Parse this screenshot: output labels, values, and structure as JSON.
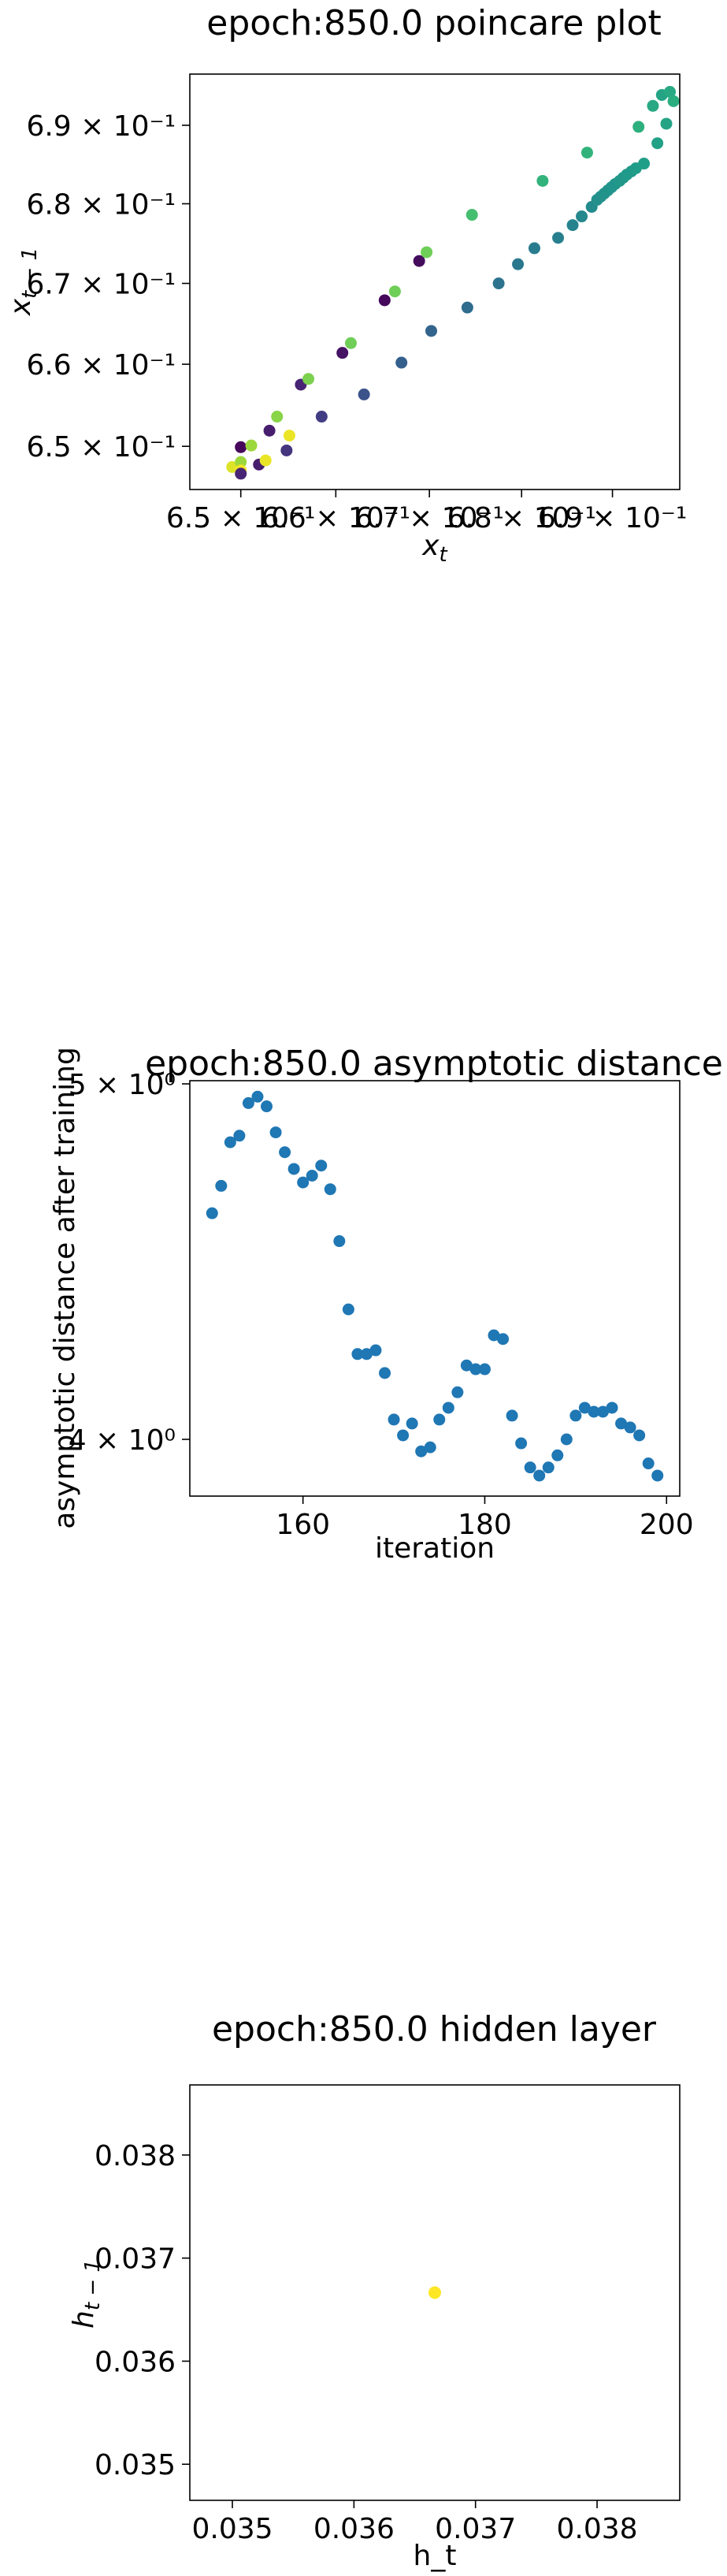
{
  "chart_data": [
    {
      "type": "scatter",
      "title": "epoch:850.0 poincare plot",
      "xlabel": "x_t",
      "ylabel": "x_{t-1}",
      "xscale": "log",
      "yscale": "log",
      "xlim": [
        0.6447,
        0.6975
      ],
      "ylim": [
        0.6448,
        0.6966
      ],
      "xticks": [
        0.65,
        0.66,
        0.67,
        0.68,
        0.69
      ],
      "xtick_labels": [
        "6.5 × 10⁻¹",
        "6.6 × 10⁻¹",
        "6.7 × 10⁻¹",
        "6.8 × 10⁻¹",
        "6.9 × 10⁻¹"
      ],
      "yticks": [
        0.65,
        0.66,
        0.67,
        0.68,
        0.69
      ],
      "ytick_labels": [
        "6.5 × 10⁻¹",
        "6.6 × 10⁻¹",
        "6.7 × 10⁻¹",
        "6.8 × 10⁻¹",
        "6.9 × 10⁻¹"
      ],
      "grid": false,
      "colormap": "viridis",
      "points": [
        {
          "x": 0.6491,
          "y": 0.6475,
          "c": 0.95
        },
        {
          "x": 0.65,
          "y": 0.6481,
          "c": 0.85
        },
        {
          "x": 0.65,
          "y": 0.6499,
          "c": 0.02
        },
        {
          "x": 0.6511,
          "y": 0.6501,
          "c": 0.85
        },
        {
          "x": 0.65,
          "y": 0.6471,
          "c": 0.98
        },
        {
          "x": 0.65,
          "y": 0.6467,
          "c": 0.1
        },
        {
          "x": 0.6519,
          "y": 0.6478,
          "c": 0.08
        },
        {
          "x": 0.6526,
          "y": 0.6483,
          "c": 0.97
        },
        {
          "x": 0.653,
          "y": 0.6519,
          "c": 0.08
        },
        {
          "x": 0.6538,
          "y": 0.6536,
          "c": 0.82
        },
        {
          "x": 0.6548,
          "y": 0.6495,
          "c": 0.15
        },
        {
          "x": 0.6551,
          "y": 0.6513,
          "c": 0.97
        },
        {
          "x": 0.6563,
          "y": 0.6575,
          "c": 0.1
        },
        {
          "x": 0.6571,
          "y": 0.6582,
          "c": 0.8
        },
        {
          "x": 0.6585,
          "y": 0.6536,
          "c": 0.18
        },
        {
          "x": 0.6607,
          "y": 0.6614,
          "c": 0.05
        },
        {
          "x": 0.6616,
          "y": 0.6626,
          "c": 0.78
        },
        {
          "x": 0.663,
          "y": 0.6563,
          "c": 0.25
        },
        {
          "x": 0.6652,
          "y": 0.6679,
          "c": 0.02
        },
        {
          "x": 0.6663,
          "y": 0.669,
          "c": 0.78
        },
        {
          "x": 0.667,
          "y": 0.6602,
          "c": 0.3
        },
        {
          "x": 0.6689,
          "y": 0.6728,
          "c": 0.03
        },
        {
          "x": 0.6697,
          "y": 0.6739,
          "c": 0.78
        },
        {
          "x": 0.6702,
          "y": 0.6641,
          "c": 0.32
        },
        {
          "x": 0.6741,
          "y": 0.667,
          "c": 0.35
        },
        {
          "x": 0.6746,
          "y": 0.6786,
          "c": 0.7
        },
        {
          "x": 0.6775,
          "y": 0.67,
          "c": 0.38
        },
        {
          "x": 0.6796,
          "y": 0.6724,
          "c": 0.4
        },
        {
          "x": 0.6814,
          "y": 0.6744,
          "c": 0.42
        },
        {
          "x": 0.6823,
          "y": 0.6829,
          "c": 0.65
        },
        {
          "x": 0.684,
          "y": 0.6757,
          "c": 0.43
        },
        {
          "x": 0.6856,
          "y": 0.6773,
          "c": 0.45
        },
        {
          "x": 0.6866,
          "y": 0.6784,
          "c": 0.47
        },
        {
          "x": 0.6872,
          "y": 0.6865,
          "c": 0.65
        },
        {
          "x": 0.6877,
          "y": 0.6796,
          "c": 0.48
        },
        {
          "x": 0.6883,
          "y": 0.6805,
          "c": 0.5
        },
        {
          "x": 0.6887,
          "y": 0.6809,
          "c": 0.5
        },
        {
          "x": 0.6891,
          "y": 0.6813,
          "c": 0.51
        },
        {
          "x": 0.6895,
          "y": 0.6817,
          "c": 0.51
        },
        {
          "x": 0.6899,
          "y": 0.6821,
          "c": 0.52
        },
        {
          "x": 0.6903,
          "y": 0.6825,
          "c": 0.52
        },
        {
          "x": 0.6908,
          "y": 0.6829,
          "c": 0.53
        },
        {
          "x": 0.6912,
          "y": 0.6833,
          "c": 0.53
        },
        {
          "x": 0.6916,
          "y": 0.6837,
          "c": 0.54
        },
        {
          "x": 0.6921,
          "y": 0.6841,
          "c": 0.54
        },
        {
          "x": 0.6926,
          "y": 0.6845,
          "c": 0.55
        },
        {
          "x": 0.6929,
          "y": 0.6898,
          "c": 0.63
        },
        {
          "x": 0.6935,
          "y": 0.6851,
          "c": 0.56
        },
        {
          "x": 0.6945,
          "y": 0.6925,
          "c": 0.6
        },
        {
          "x": 0.695,
          "y": 0.6877,
          "c": 0.57
        },
        {
          "x": 0.6955,
          "y": 0.6939,
          "c": 0.58
        },
        {
          "x": 0.696,
          "y": 0.6902,
          "c": 0.58
        },
        {
          "x": 0.6964,
          "y": 0.6943,
          "c": 0.6
        },
        {
          "x": 0.6968,
          "y": 0.6931,
          "c": 0.62
        }
      ]
    },
    {
      "type": "scatter",
      "title": "epoch:850.0 asymptotic distance",
      "xlabel": "iteration",
      "ylabel": "asymptotic distance after training",
      "yscale": "log",
      "xlim": [
        147.55,
        201.45
      ],
      "ylim": [
        3.86,
        5.01
      ],
      "xticks": [
        160,
        180,
        200
      ],
      "xtick_labels": [
        "160",
        "180",
        "200"
      ],
      "yticks": [
        4,
        5
      ],
      "ytick_labels": [
        "4 × 10⁰",
        "5 × 10⁰"
      ],
      "grid": false,
      "color": "#1f77b4",
      "x": [
        150,
        151,
        152,
        153,
        154,
        155,
        156,
        157,
        158,
        159,
        160,
        161,
        162,
        163,
        164,
        165,
        166,
        167,
        168,
        169,
        170,
        171,
        172,
        173,
        174,
        175,
        176,
        177,
        178,
        179,
        180,
        181,
        182,
        183,
        184,
        185,
        186,
        187,
        188,
        189,
        190,
        191,
        192,
        193,
        194,
        195,
        196,
        197,
        198,
        199
      ],
      "y": [
        4.61,
        4.69,
        4.82,
        4.84,
        4.94,
        4.96,
        4.93,
        4.85,
        4.79,
        4.74,
        4.7,
        4.72,
        4.75,
        4.68,
        4.53,
        4.34,
        4.22,
        4.22,
        4.23,
        4.17,
        4.05,
        4.01,
        4.04,
        3.97,
        3.98,
        4.05,
        4.08,
        4.12,
        4.19,
        4.18,
        4.18,
        4.27,
        4.26,
        4.06,
        3.99,
        3.93,
        3.91,
        3.93,
        3.96,
        4.0,
        4.06,
        4.08,
        4.07,
        4.07,
        4.08,
        4.04,
        4.03,
        4.01,
        3.94,
        3.91
      ]
    },
    {
      "type": "scatter",
      "title": "epoch:850.0 hidden layer",
      "xlabel": "h_t",
      "ylabel": "h_{t-1}",
      "xlim": [
        0.03465,
        0.03868
      ],
      "ylim": [
        0.03465,
        0.03868
      ],
      "xticks": [
        0.035,
        0.036,
        0.037,
        0.038
      ],
      "xtick_labels": [
        "0.035",
        "0.036",
        "0.037",
        "0.038"
      ],
      "yticks": [
        0.035,
        0.036,
        0.037,
        0.038
      ],
      "ytick_labels": [
        "0.035",
        "0.036",
        "0.037",
        "0.038"
      ],
      "grid": false,
      "color": "#fde725",
      "points": [
        {
          "x": 0.036665,
          "y": 0.036665
        }
      ]
    }
  ]
}
